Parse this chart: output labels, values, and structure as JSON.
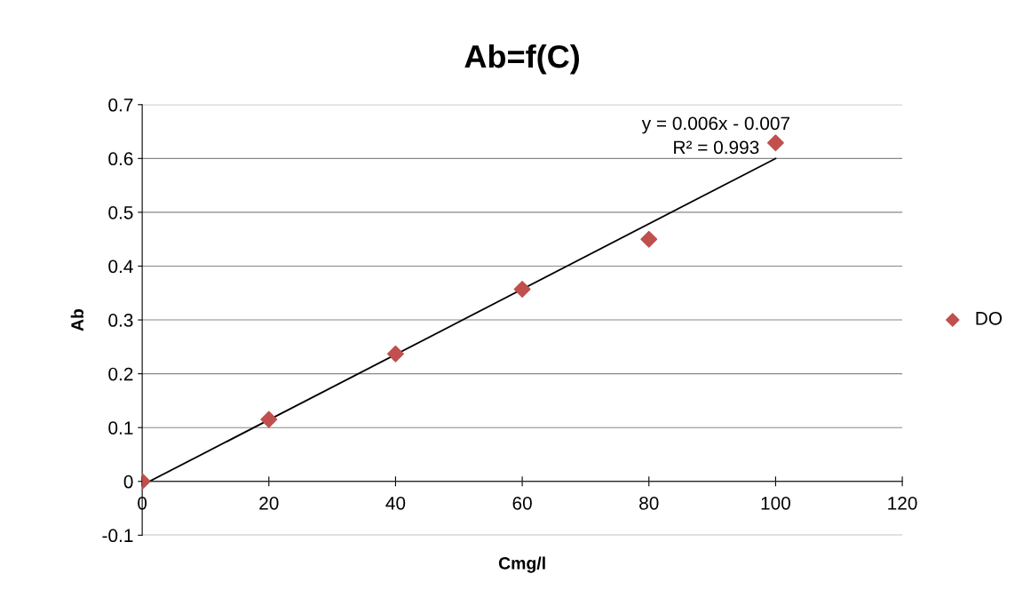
{
  "chart_data": {
    "type": "scatter",
    "title": "Ab=f(C)",
    "xlabel": "Cmg/l",
    "ylabel": "Ab",
    "xlim": [
      0,
      120
    ],
    "xticks": [
      0,
      20,
      40,
      60,
      80,
      100,
      120
    ],
    "ylim": [
      -0.1,
      0.7
    ],
    "yticks": [
      -0.1,
      0,
      0.1,
      0.2,
      0.3,
      0.4,
      0.5,
      0.6,
      0.7
    ],
    "grid": "y",
    "legend": "right",
    "marker": "diamond",
    "series": [
      {
        "name": "DO",
        "color": "#c0504d",
        "x": [
          0,
          20,
          40,
          60,
          80,
          100
        ],
        "values": [
          0,
          0.115,
          0.237,
          0.357,
          0.45,
          0.629
        ]
      },
      {
        "type": "line",
        "color": "#000000",
        "x": [
          0,
          100
        ],
        "values": [
          -0.007,
          0.6
        ],
        "marker": "none",
        "line_style": "solid"
      }
    ],
    "annotations": [
      "y = 0.006x - 0.007\nR² = 0.993"
    ]
  }
}
